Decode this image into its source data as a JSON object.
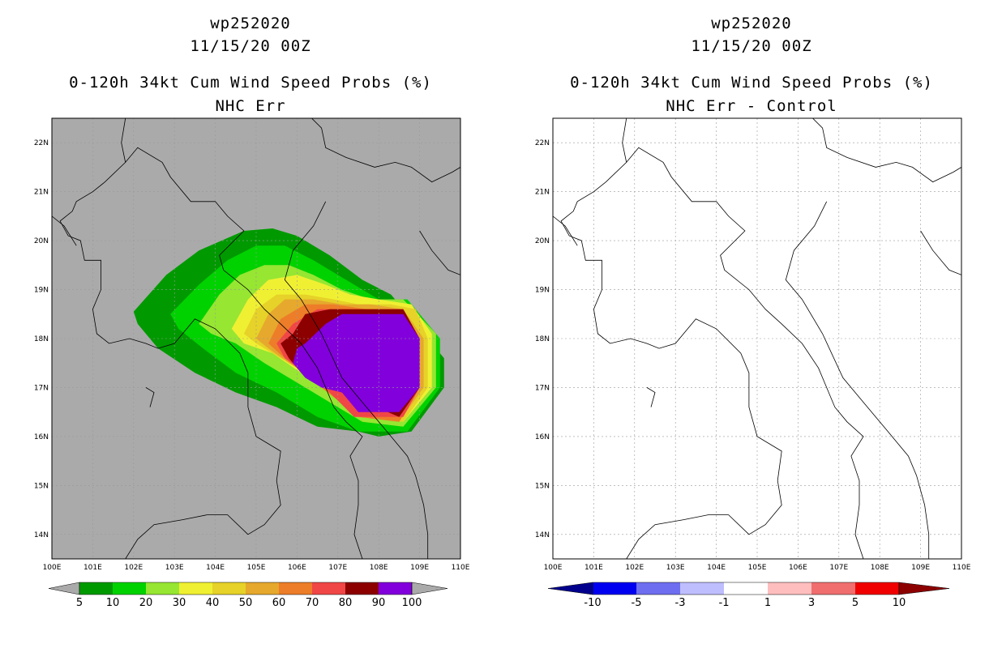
{
  "chart_data": [
    {
      "type": "heatmap",
      "title_lines": [
        "wp252020",
        "11/15/20 00Z",
        "0-120h 34kt Cum Wind Speed Probs (%)",
        "NHC Err"
      ],
      "x_ticks": [
        "100E",
        "101E",
        "102E",
        "103E",
        "104E",
        "105E",
        "106E",
        "107E",
        "108E",
        "109E",
        "110E"
      ],
      "y_ticks": [
        "14N",
        "15N",
        "16N",
        "17N",
        "18N",
        "19N",
        "20N",
        "21N",
        "22N"
      ],
      "xlim": [
        100,
        110
      ],
      "ylim": [
        13.5,
        22.5
      ],
      "background": "#aaaaaa",
      "colorbar": {
        "labels": [
          "5",
          "10",
          "20",
          "30",
          "40",
          "50",
          "60",
          "70",
          "80",
          "90",
          "100"
        ],
        "colors": [
          "#009a00",
          "#00d200",
          "#96e632",
          "#f0f032",
          "#e6d228",
          "#e6a82d",
          "#ed7d28",
          "#f04646",
          "#8c0000",
          "#8200dc"
        ]
      },
      "probability_levels": [
        {
          "level": 5,
          "color": "#009a00",
          "lons": [
            102.0,
            102.8,
            103.6,
            104.7,
            105.4,
            106.0,
            106.8,
            107.6,
            108.3,
            109.2,
            109.6,
            109.6,
            108.8,
            108.0,
            107.5,
            106.5,
            105.5,
            104.5,
            103.5,
            102.6,
            102.1
          ],
          "lats": [
            18.55,
            19.3,
            19.8,
            20.2,
            20.25,
            20.1,
            19.7,
            19.2,
            18.9,
            18.0,
            17.6,
            17.0,
            16.1,
            16.0,
            16.1,
            16.2,
            16.6,
            16.9,
            17.3,
            17.8,
            18.3
          ]
        },
        {
          "level": 10,
          "color": "#00d200",
          "lons": [
            102.9,
            103.6,
            104.3,
            105.0,
            105.7,
            106.4,
            107.2,
            108.0,
            108.7,
            109.5,
            109.5,
            108.7,
            107.5,
            106.5,
            105.5,
            104.5,
            103.7,
            103.1
          ],
          "lats": [
            18.5,
            19.1,
            19.6,
            19.9,
            19.9,
            19.6,
            19.2,
            18.8,
            18.8,
            18.0,
            17.0,
            16.1,
            16.1,
            16.4,
            16.9,
            17.3,
            17.8,
            18.2
          ]
        },
        {
          "level": 20,
          "color": "#96e632",
          "lons": [
            103.6,
            104.1,
            104.6,
            105.2,
            105.8,
            106.4,
            107.1,
            107.8,
            108.6,
            109.4,
            109.4,
            108.6,
            107.6,
            106.8,
            106.0,
            105.2,
            104.5,
            103.9
          ],
          "lats": [
            18.3,
            18.9,
            19.3,
            19.5,
            19.5,
            19.3,
            19.0,
            18.8,
            18.8,
            18.1,
            17.0,
            16.2,
            16.3,
            16.7,
            17.1,
            17.5,
            17.9,
            18.1
          ]
        },
        {
          "level": 30,
          "color": "#f0f032",
          "lons": [
            104.4,
            104.8,
            105.3,
            106.0,
            106.7,
            107.3,
            108.0,
            108.8,
            109.3,
            109.3,
            108.6,
            107.7,
            106.9,
            106.1,
            105.4,
            104.7
          ],
          "lats": [
            18.2,
            18.8,
            19.2,
            19.3,
            19.1,
            18.9,
            18.8,
            18.7,
            18.1,
            17.0,
            16.3,
            16.4,
            16.9,
            17.3,
            17.7,
            17.9
          ]
        },
        {
          "level": 40,
          "color": "#e6d228",
          "lons": [
            104.7,
            105.0,
            105.5,
            106.2,
            106.9,
            107.5,
            108.3,
            108.9,
            109.2,
            109.2,
            108.6,
            107.7,
            107.0,
            106.3,
            105.6,
            105.0
          ],
          "lats": [
            18.1,
            18.6,
            18.9,
            18.9,
            18.8,
            18.7,
            18.7,
            18.6,
            18.0,
            17.0,
            16.3,
            16.4,
            16.9,
            17.3,
            17.6,
            17.9
          ]
        },
        {
          "level": 50,
          "color": "#e6a82d",
          "lons": [
            105.0,
            105.3,
            105.7,
            106.4,
            107.1,
            107.8,
            108.6,
            109.1,
            109.1,
            108.5,
            107.6,
            107.0,
            106.4,
            105.8,
            105.3
          ],
          "lats": [
            18.0,
            18.5,
            18.8,
            18.8,
            18.7,
            18.7,
            18.6,
            18.0,
            17.0,
            16.3,
            16.4,
            16.8,
            17.2,
            17.5,
            17.8
          ]
        },
        {
          "level": 60,
          "color": "#ed7d28",
          "lons": [
            105.3,
            105.6,
            106.2,
            106.9,
            107.7,
            108.6,
            109.0,
            109.0,
            108.5,
            107.5,
            106.9,
            106.3,
            105.7
          ],
          "lats": [
            17.9,
            18.4,
            18.7,
            18.7,
            18.6,
            18.6,
            18.0,
            17.0,
            16.3,
            16.4,
            16.8,
            17.2,
            17.6
          ]
        },
        {
          "level": 70,
          "color": "#f04646",
          "lons": [
            105.5,
            105.9,
            106.5,
            107.2,
            108.0,
            108.6,
            109.0,
            109.0,
            108.6,
            107.4,
            106.8,
            106.2,
            105.7
          ],
          "lats": [
            17.9,
            18.3,
            18.6,
            18.6,
            18.6,
            18.6,
            18.0,
            17.0,
            16.4,
            16.4,
            16.9,
            17.3,
            17.6
          ]
        },
        {
          "level": 80,
          "color": "#8c0000",
          "lons": [
            105.6,
            105.9,
            106.2,
            106.8,
            107.4,
            108.0,
            108.6,
            109.0,
            109.0,
            108.5,
            107.1,
            106.7,
            106.1,
            105.8
          ],
          "lats": [
            17.9,
            18.1,
            18.5,
            18.6,
            18.6,
            18.6,
            18.6,
            18.0,
            17.0,
            16.4,
            16.9,
            17.0,
            17.3,
            17.6
          ]
        },
        {
          "level": 90,
          "color": "#8200dc",
          "lons": [
            106.2,
            106.7,
            107.1,
            108.1,
            108.6,
            109.0,
            109.0,
            108.5,
            107.5,
            107.1,
            106.6,
            106.2,
            105.9,
            106.0
          ],
          "lats": [
            17.9,
            18.3,
            18.5,
            18.5,
            18.5,
            18.0,
            17.0,
            16.5,
            16.5,
            16.9,
            17.0,
            17.2,
            17.5,
            17.8
          ]
        }
      ]
    },
    {
      "type": "heatmap",
      "title_lines": [
        "wp252020",
        "11/15/20 00Z",
        "0-120h 34kt Cum Wind Speed Probs (%)",
        "NHC Err - Control"
      ],
      "x_ticks": [
        "100E",
        "101E",
        "102E",
        "103E",
        "104E",
        "105E",
        "106E",
        "107E",
        "108E",
        "109E",
        "110E"
      ],
      "y_ticks": [
        "14N",
        "15N",
        "16N",
        "17N",
        "18N",
        "19N",
        "20N",
        "21N",
        "22N"
      ],
      "xlim": [
        100,
        110
      ],
      "ylim": [
        13.5,
        22.5
      ],
      "background": "#ffffff",
      "colorbar": {
        "labels": [
          "-10",
          "-5",
          "-3",
          "-1",
          "1",
          "3",
          "5",
          "10"
        ],
        "colors": [
          "#0000f0",
          "#6e6ef0",
          "#bebeff",
          "#ffffff",
          "#ffbebe",
          "#f06e6e",
          "#f00000"
        ],
        "end_colors": [
          "#00008c",
          "#8c0000"
        ]
      }
    }
  ]
}
